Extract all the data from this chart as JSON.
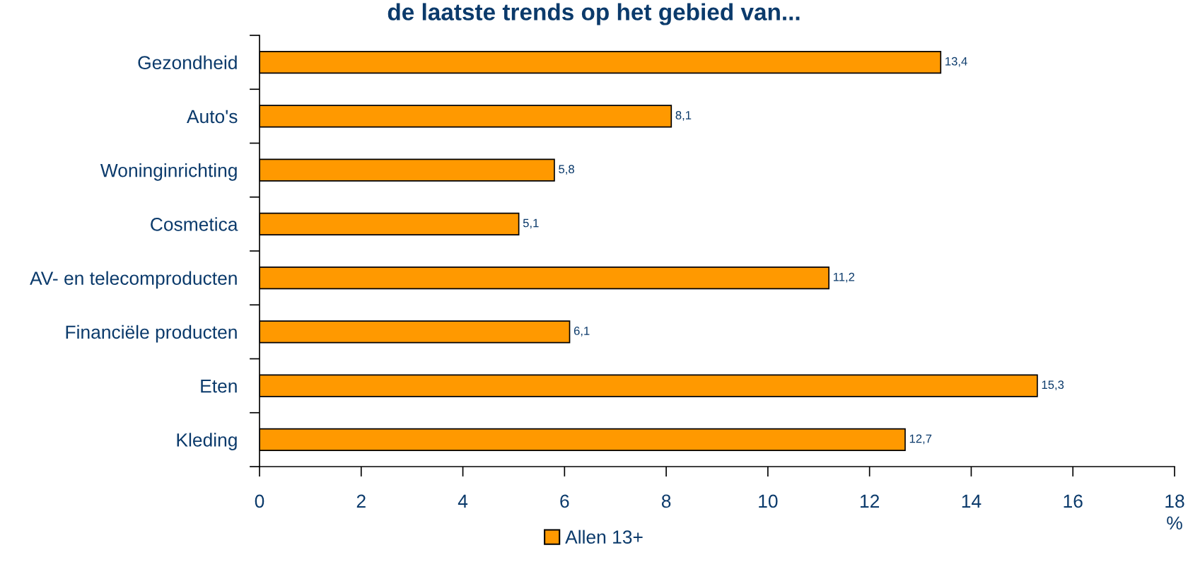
{
  "chart_data": {
    "type": "bar",
    "orientation": "horizontal",
    "title": "de laatste trends op het gebied van...",
    "categories": [
      "Gezondheid",
      "Auto's",
      "Woninginrichting",
      "Cosmetica",
      "AV- en telecomproducten",
      "Financiële producten",
      "Eten",
      "Kleding"
    ],
    "series": [
      {
        "name": "Allen 13+",
        "color": "#ff9900",
        "values": [
          13.4,
          8.1,
          5.8,
          5.1,
          11.2,
          6.1,
          15.3,
          12.7
        ],
        "value_labels": [
          "13,4",
          "8,1",
          "5,8",
          "5,1",
          "11,2",
          "6,1",
          "15,3",
          "12,7"
        ]
      }
    ],
    "xlabel": "%",
    "xlim": [
      0,
      18
    ],
    "xticks": [
      0,
      2,
      4,
      6,
      8,
      10,
      12,
      14,
      16,
      18
    ],
    "grid": false,
    "legend": "bottom"
  }
}
